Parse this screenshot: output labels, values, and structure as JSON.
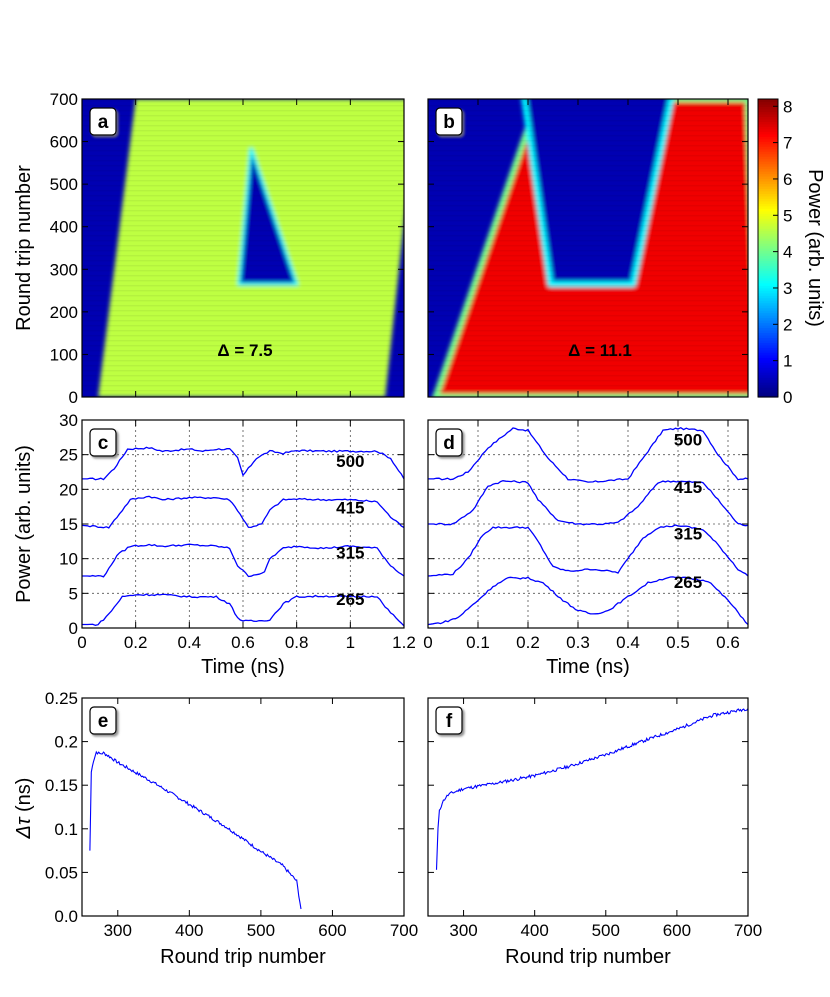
{
  "chart_data": [
    {
      "panel": "a",
      "type": "heatmap",
      "xlim": [
        0,
        1.2
      ],
      "ylim": [
        0,
        700
      ],
      "ylabel": "Round trip number",
      "yticks": [
        "0",
        "100",
        "200",
        "300",
        "400",
        "500",
        "600",
        "700"
      ],
      "annotation": "Δ = 7.5",
      "annotation_symbol": "Δ",
      "annotation_value": "= 7.5",
      "regions": {
        "band_left_at_0": 0.06,
        "band_left_at_700": 0.2,
        "band_right_at_0": 1.13,
        "band_right_at_700": 1.25,
        "band_level": 4.6,
        "hole_start_round_trip": 265,
        "hole_apex_round_trip": 585,
        "hole_base_left": 0.585,
        "hole_base_right": 0.8,
        "hole_apex_time": 0.63,
        "hole_level": 0.4
      }
    },
    {
      "panel": "b",
      "type": "heatmap",
      "xlim": [
        0,
        0.64
      ],
      "ylim": [
        0,
        700
      ],
      "annotation": "Δ = 11.1",
      "annotation_symbol": "Δ",
      "annotation_value": "= 11.1",
      "regions": {
        "band_left_at_0": 0.015,
        "band_left_at_700": 0.22,
        "band_right_at_0": 0.66,
        "band_right_at_700": 0.64,
        "band_level": 7.3,
        "hole_start_round_trip": 265,
        "hole_left_at_265": 0.245,
        "hole_left_at_700": 0.19,
        "hole_right_at_265": 0.41,
        "hole_right_at_700": 0.49,
        "hole_level": 0.4
      }
    },
    {
      "panel": "colorbar",
      "type": "colorbar",
      "range": [
        0,
        8.2
      ],
      "ticks": [
        "0",
        "1",
        "2",
        "3",
        "4",
        "5",
        "6",
        "7",
        "8"
      ],
      "label": "Power (arb. units)",
      "colormap": [
        "#000080",
        "#0000ff",
        "#0080ff",
        "#00ffff",
        "#80ff80",
        "#ffff00",
        "#ff8000",
        "#ff0000",
        "#800000"
      ]
    },
    {
      "panel": "c",
      "type": "line",
      "xlabel": "Time (ns)",
      "ylabel": "Power (arb. units)",
      "xlim": [
        0,
        1.2
      ],
      "ylim": [
        0,
        30
      ],
      "xticks": [
        "0",
        "0.2",
        "0.4",
        "0.6",
        "0.8",
        "1",
        "1.2"
      ],
      "yticks": [
        "0",
        "5",
        "10",
        "15",
        "20",
        "25",
        "30"
      ],
      "grid": true,
      "line_color": "#0000ff",
      "series": [
        {
          "name": "500",
          "label_at": [
            1.0,
            23.2
          ],
          "x": [
            0,
            0.08,
            0.12,
            0.17,
            0.25,
            0.3,
            0.4,
            0.45,
            0.5,
            0.55,
            0.58,
            0.6,
            0.65,
            0.7,
            0.75,
            0.8,
            0.9,
            1.0,
            1.1,
            1.15,
            1.2
          ],
          "y": [
            21.5,
            21.5,
            23,
            25.8,
            26,
            25.5,
            25.8,
            25.5,
            25.8,
            25.8,
            24.5,
            22,
            24.5,
            25.5,
            25.2,
            25.6,
            25.5,
            25.5,
            25.5,
            24.5,
            21.5
          ]
        },
        {
          "name": "415",
          "label_at": [
            1.0,
            16.5
          ],
          "x": [
            0,
            0.1,
            0.13,
            0.18,
            0.25,
            0.3,
            0.4,
            0.5,
            0.55,
            0.58,
            0.62,
            0.67,
            0.7,
            0.75,
            0.8,
            0.9,
            1.0,
            1.1,
            1.15,
            1.2
          ],
          "y": [
            14.8,
            14.5,
            16,
            18.5,
            19,
            18.5,
            18.8,
            18.8,
            18.5,
            17,
            14.5,
            15,
            17,
            18.5,
            18.6,
            18.5,
            18.5,
            18.2,
            16,
            14.5
          ]
        },
        {
          "name": "315",
          "label_at": [
            1.0,
            10.0
          ],
          "x": [
            0,
            0.08,
            0.1,
            0.13,
            0.18,
            0.25,
            0.3,
            0.4,
            0.5,
            0.55,
            0.58,
            0.62,
            0.68,
            0.7,
            0.75,
            0.8,
            0.9,
            1.0,
            1.1,
            1.15,
            1.2
          ],
          "y": [
            7.5,
            7.5,
            8.5,
            10.5,
            11.8,
            12,
            11.8,
            12,
            11.8,
            11.5,
            9,
            7.5,
            8,
            10,
            11.5,
            11.8,
            11.5,
            11.8,
            11.5,
            9,
            7.5
          ]
        },
        {
          "name": "265",
          "label_at": [
            1.0,
            3.3
          ],
          "x": [
            0,
            0.06,
            0.1,
            0.15,
            0.2,
            0.3,
            0.4,
            0.5,
            0.55,
            0.58,
            0.6,
            0.65,
            0.7,
            0.75,
            0.8,
            0.9,
            1.0,
            1.1,
            1.13,
            1.2
          ],
          "y": [
            0.5,
            0.5,
            2,
            4.5,
            4.8,
            4.8,
            4.5,
            4.5,
            3.5,
            1.5,
            1,
            1,
            1.2,
            3.5,
            4.5,
            4.6,
            4.5,
            4.6,
            3,
            0.3
          ]
        }
      ]
    },
    {
      "panel": "d",
      "type": "line",
      "xlabel": "Time (ns)",
      "xlim": [
        0,
        0.64
      ],
      "ylim": [
        0,
        30
      ],
      "xticks": [
        "0",
        "0.1",
        "0.2",
        "0.3",
        "0.4",
        "0.5",
        "0.6"
      ],
      "yticks": [
        "0",
        "5",
        "10",
        "15",
        "20",
        "25",
        "30"
      ],
      "grid": true,
      "line_color": "#0000ff",
      "series": [
        {
          "name": "500",
          "label_at": [
            0.52,
            26.3
          ],
          "x": [
            0,
            0.05,
            0.08,
            0.12,
            0.17,
            0.2,
            0.24,
            0.28,
            0.32,
            0.35,
            0.4,
            0.44,
            0.47,
            0.5,
            0.55,
            0.58,
            0.62,
            0.64
          ],
          "y": [
            21.5,
            21.5,
            22.5,
            26,
            28.8,
            28.5,
            24.5,
            21.5,
            21,
            21.2,
            21.5,
            25.5,
            28.5,
            28.8,
            28.5,
            25,
            21.5,
            21.5
          ]
        },
        {
          "name": "415",
          "label_at": [
            0.52,
            19.5
          ],
          "x": [
            0,
            0.05,
            0.09,
            0.12,
            0.15,
            0.2,
            0.22,
            0.26,
            0.3,
            0.35,
            0.38,
            0.42,
            0.46,
            0.48,
            0.55,
            0.58,
            0.62,
            0.64
          ],
          "y": [
            15,
            15,
            17,
            20.5,
            21.2,
            21,
            18.5,
            15.5,
            15,
            15,
            15.2,
            17.5,
            21,
            21.2,
            21,
            18.5,
            15,
            14.8
          ]
        },
        {
          "name": "315",
          "label_at": [
            0.52,
            12.8
          ],
          "x": [
            0,
            0.05,
            0.08,
            0.11,
            0.13,
            0.2,
            0.22,
            0.25,
            0.28,
            0.33,
            0.38,
            0.4,
            0.43,
            0.46,
            0.5,
            0.55,
            0.58,
            0.62,
            0.64
          ],
          "y": [
            7.5,
            7.8,
            10,
            13.5,
            14.5,
            14.5,
            12.5,
            8.8,
            8.2,
            8.5,
            8,
            10,
            13,
            14.5,
            14.8,
            14.2,
            12,
            8.5,
            7.5
          ]
        },
        {
          "name": "265",
          "label_at": [
            0.52,
            5.8
          ],
          "x": [
            0,
            0.03,
            0.06,
            0.1,
            0.13,
            0.16,
            0.2,
            0.23,
            0.27,
            0.3,
            0.33,
            0.36,
            0.4,
            0.44,
            0.48,
            0.52,
            0.56,
            0.6,
            0.64
          ],
          "y": [
            0.5,
            0.8,
            1.5,
            4,
            6,
            7.2,
            7.2,
            6.5,
            4,
            2.5,
            2,
            2.5,
            4.5,
            6.5,
            7.3,
            7.2,
            6.8,
            4,
            0.5
          ]
        }
      ]
    },
    {
      "panel": "e",
      "type": "line",
      "xlabel": "Round trip number",
      "ylabel": "Δτ (ns)",
      "xlim": [
        250,
        700
      ],
      "ylim": [
        0,
        0.25
      ],
      "xticks": [
        "300",
        "400",
        "500",
        "600",
        "700"
      ],
      "yticks": [
        "0.0",
        "0.05",
        "0.1",
        "0.15",
        "0.2",
        "0.25"
      ],
      "line_color": "#0000ff",
      "x": [
        261,
        263,
        266,
        270,
        275,
        280,
        290,
        300,
        350,
        400,
        450,
        500,
        530,
        550,
        556
      ],
      "y": [
        0.075,
        0.165,
        0.178,
        0.188,
        0.186,
        0.187,
        0.182,
        0.176,
        0.153,
        0.128,
        0.103,
        0.074,
        0.058,
        0.04,
        0.008
      ]
    },
    {
      "panel": "f",
      "type": "line",
      "xlabel": "Round trip number",
      "xlim": [
        250,
        700
      ],
      "ylim": [
        0,
        0.25
      ],
      "xticks": [
        "300",
        "400",
        "500",
        "600",
        "700"
      ],
      "yticks": [
        "0.0",
        "0.05",
        "0.1",
        "0.15",
        "0.2",
        "0.25"
      ],
      "line_color": "#0000ff",
      "x": [
        262,
        264,
        266,
        270,
        275,
        280,
        300,
        350,
        400,
        450,
        500,
        550,
        600,
        650,
        700
      ],
      "y": [
        0.053,
        0.1,
        0.12,
        0.13,
        0.136,
        0.14,
        0.146,
        0.153,
        0.161,
        0.172,
        0.185,
        0.2,
        0.214,
        0.23,
        0.238
      ]
    }
  ],
  "labels": {
    "panel_letters": [
      "a",
      "b",
      "c",
      "d",
      "e",
      "f"
    ],
    "y_round_trip": "Round trip number",
    "y_power": "Power (arb. units)",
    "y_delta_tau_symbol": "Δτ",
    "y_delta_tau_unit": " (ns)",
    "x_time": "Time (ns)",
    "x_round_trip": "Round trip number"
  }
}
